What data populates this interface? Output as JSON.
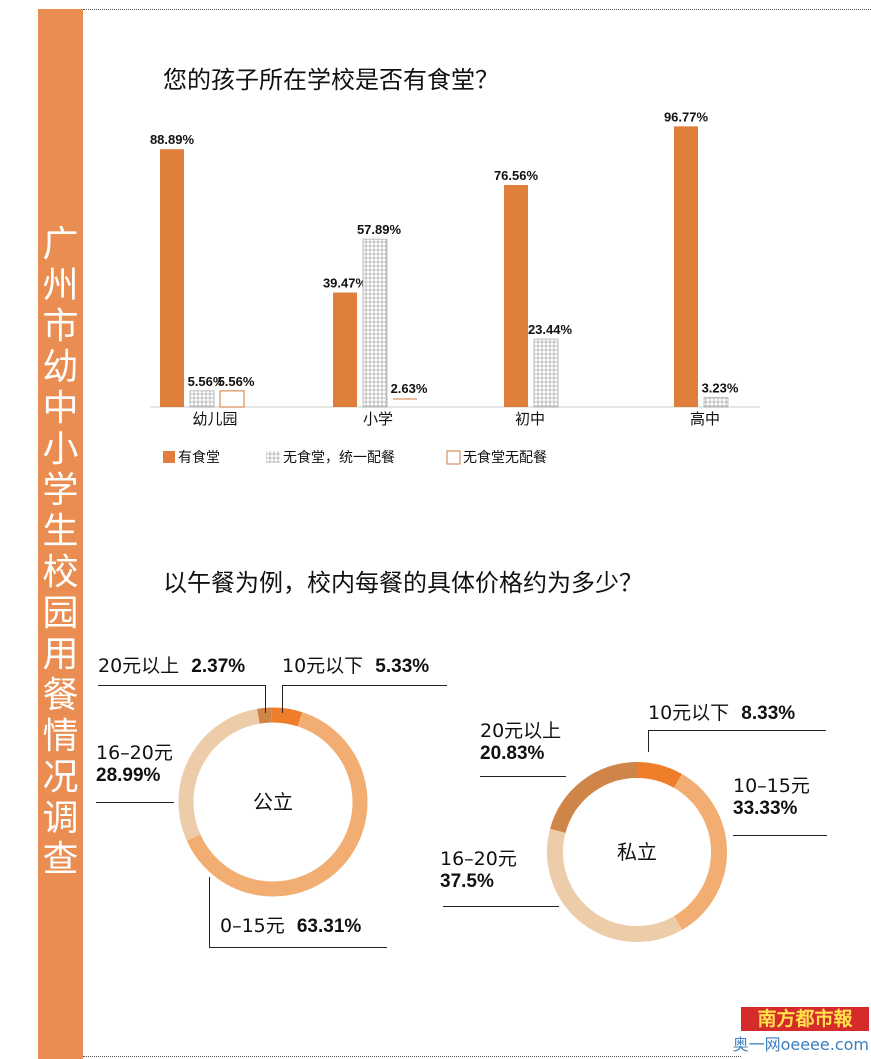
{
  "side_title": "广州市幼中小学生校园用餐情况调查",
  "chart_data": [
    {
      "type": "bar",
      "title": "您的孩子所在学校是否有食堂？",
      "categories": [
        "幼儿园",
        "小学",
        "初中",
        "高中"
      ],
      "series": [
        {
          "name": "有食堂",
          "color": "#E07E3C",
          "values": [
            88.89,
            39.47,
            76.56,
            96.77
          ],
          "labels": [
            "88.89%",
            "39.47%",
            "76.56%",
            "96.77%"
          ]
        },
        {
          "name": "无食堂，统一配餐",
          "color": "hatched",
          "values": [
            5.56,
            57.89,
            23.44,
            3.23
          ],
          "labels": [
            "5.56%",
            "57.89%",
            "23.44%",
            "3.23%"
          ]
        },
        {
          "name": "无食堂无配餐",
          "color": "outline",
          "values": [
            5.56,
            2.63,
            null,
            null
          ],
          "labels": [
            "5.56%",
            "2.63%",
            null,
            null
          ]
        }
      ],
      "ylim": [
        0,
        100
      ],
      "legend": "bottom-left"
    },
    {
      "type": "pie",
      "title": "以午餐为例，校内每餐的具体价格约为多少？",
      "donuts": [
        {
          "center_label": "公立",
          "slices": [
            {
              "name": "10元以下",
              "value": 5.33,
              "label": "5.33%",
              "color": "#EE7E2A"
            },
            {
              "name": "0–15元",
              "value": 63.31,
              "label": "63.31%",
              "color": "#F2AE72"
            },
            {
              "name": "16–20元",
              "value": 28.99,
              "label": "28.99%",
              "color": "#EDCCAA"
            },
            {
              "name": "20元以上",
              "value": 2.37,
              "label": "2.37%",
              "color": "#CF8548"
            }
          ]
        },
        {
          "center_label": "私立",
          "slices": [
            {
              "name": "10元以下",
              "value": 8.33,
              "label": "8.33%",
              "color": "#EE7E2A"
            },
            {
              "name": "10–15元",
              "value": 33.33,
              "label": "33.33%",
              "color": "#F2AE72"
            },
            {
              "name": "16–20元",
              "value": 37.5,
              "label": "37.5%",
              "color": "#EDCCAA"
            },
            {
              "name": "20元以上",
              "value": 20.83,
              "label": "20.83%",
              "color": "#CF8548"
            }
          ]
        }
      ]
    }
  ],
  "logo": {
    "name": "南方都市報",
    "sub": "奥一网oeeee.com"
  }
}
